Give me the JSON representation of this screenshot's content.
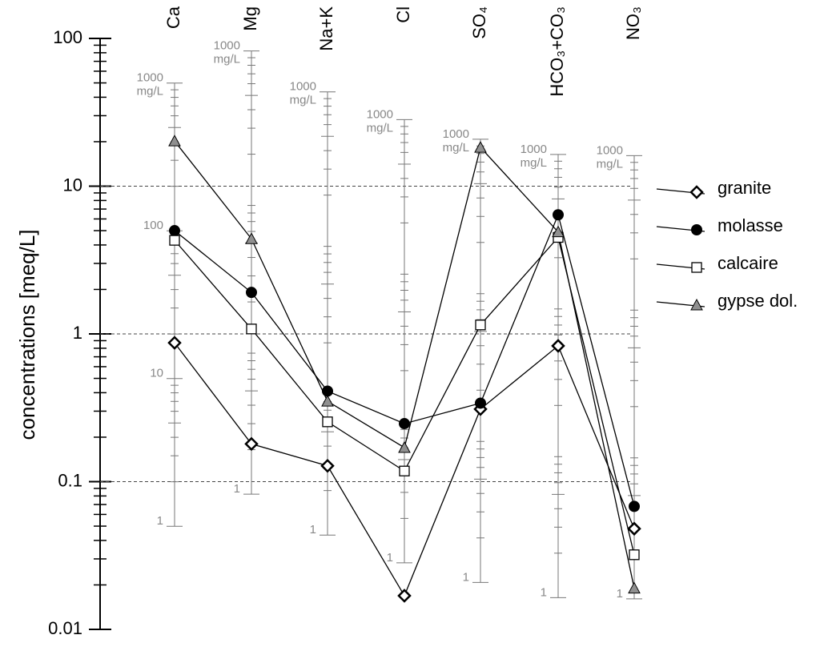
{
  "chart_data": {
    "type": "line",
    "ylabel": "concentrations  [meq/L]",
    "categories": [
      "Ca",
      "Mg",
      "Na+K",
      "Cl",
      "SO₄",
      "HCO₃+CO₃",
      "NO₃"
    ],
    "ylog": true,
    "ylim": [
      0.01,
      100
    ],
    "yticks": [
      0.01,
      0.1,
      1,
      10,
      100
    ],
    "grid_lines": [
      0.1,
      1,
      10
    ],
    "legend": "right",
    "series": [
      {
        "name": "granite",
        "marker": "diamond",
        "color": "#000000",
        "fill": "#ffffff",
        "values": [
          0.87,
          0.18,
          0.128,
          0.0169,
          0.31,
          0.83,
          0.048
        ]
      },
      {
        "name": "molasse",
        "marker": "circle",
        "color": "#000000",
        "fill": "#000000",
        "values": [
          5.0,
          1.91,
          0.41,
          0.247,
          0.34,
          6.4,
          0.068
        ]
      },
      {
        "name": "calcaire",
        "marker": "square",
        "color": "#000000",
        "fill": "#ffffff",
        "values": [
          4.3,
          1.08,
          0.254,
          0.118,
          1.15,
          4.5,
          0.032
        ]
      },
      {
        "name": "gypse dol.",
        "marker": "triangle",
        "color": "#000000",
        "fill": "#909090",
        "values": [
          20.2,
          4.4,
          0.35,
          0.17,
          18.3,
          4.9,
          0.019
        ]
      }
    ],
    "secondary_unit": "mg/L",
    "secondary_scales": [
      {
        "ticks": [
          {
            "value": 49.9,
            "label": "1000"
          },
          {
            "value": 4.99,
            "label": "100"
          },
          {
            "value": 0.499,
            "label": "10"
          },
          {
            "value": 0.0499,
            "label": "1"
          }
        ]
      },
      {
        "ticks": [
          {
            "value": 82.3,
            "label": "1000"
          },
          {
            "value": 0.0823,
            "label": "1"
          }
        ]
      },
      {
        "ticks": [
          {
            "value": 43.5,
            "label": "1000"
          },
          {
            "value": 0.0435,
            "label": "1"
          }
        ]
      },
      {
        "ticks": [
          {
            "value": 28.2,
            "label": "1000"
          },
          {
            "value": 0.0282,
            "label": "1"
          }
        ]
      },
      {
        "ticks": [
          {
            "value": 20.8,
            "label": "1000"
          },
          {
            "value": 0.0208,
            "label": "1"
          }
        ]
      },
      {
        "ticks": [
          {
            "value": 16.4,
            "label": "1000"
          },
          {
            "value": 0.0164,
            "label": "1"
          }
        ]
      },
      {
        "ticks": [
          {
            "value": 16.1,
            "label": "1000"
          },
          {
            "value": 0.0161,
            "label": "1"
          }
        ]
      }
    ]
  }
}
